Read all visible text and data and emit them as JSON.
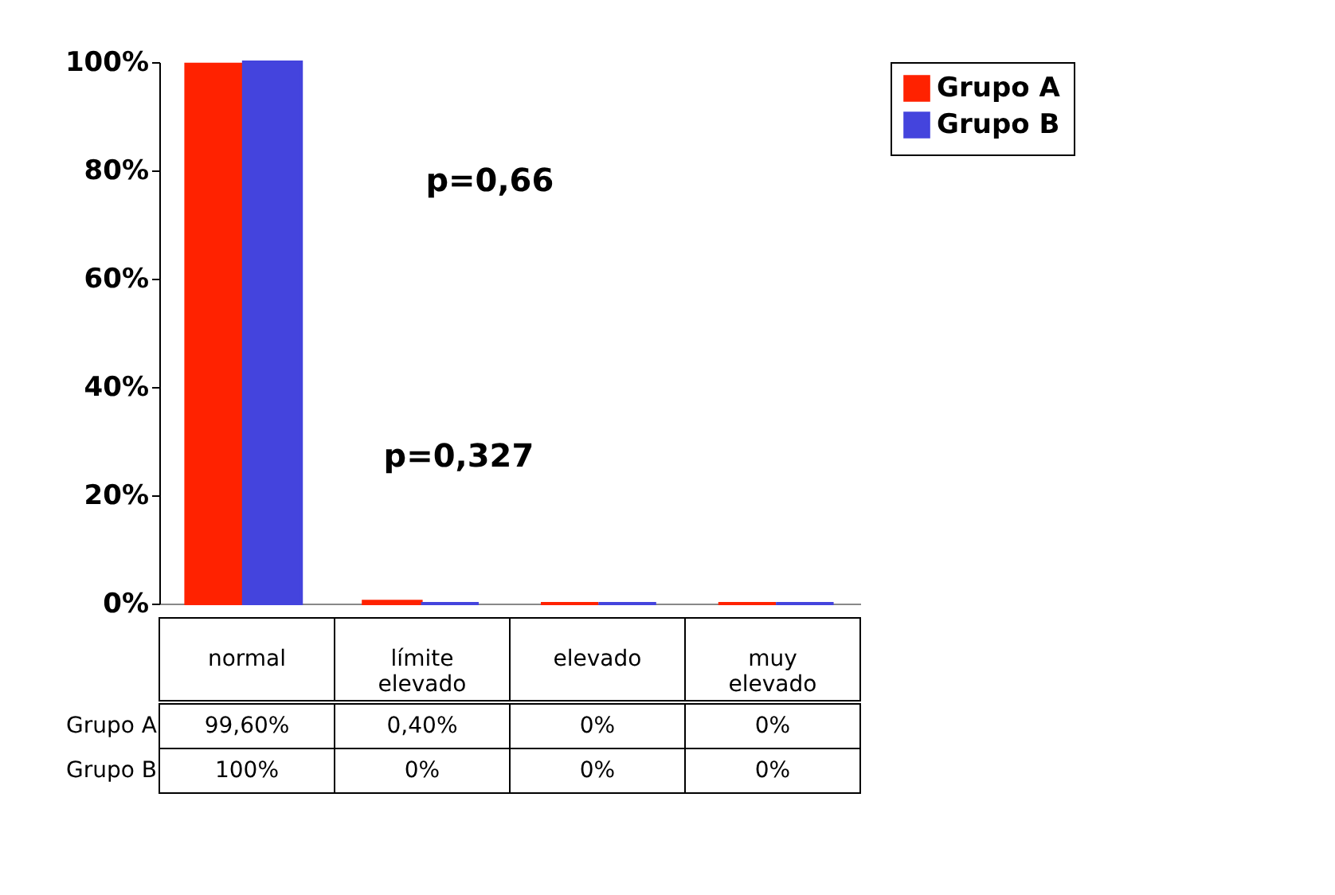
{
  "chart_data": {
    "type": "bar",
    "categories": [
      "normal",
      "límite elevado",
      "elevado",
      "muy elevado"
    ],
    "series": [
      {
        "name": "Grupo A",
        "color": "#ff2200",
        "values": [
          99.6,
          0.4,
          0,
          0
        ],
        "value_labels": [
          "99,60%",
          "0,40%",
          "0%",
          "0%"
        ]
      },
      {
        "name": "Grupo B",
        "color": "#4444dd",
        "values": [
          100,
          0,
          0,
          0
        ],
        "value_labels": [
          "100%",
          "0%",
          "0%",
          "0%"
        ]
      }
    ],
    "ylim": [
      0,
      100
    ],
    "yticks": [
      {
        "value": 0,
        "label": "0%"
      },
      {
        "value": 20,
        "label": "20%"
      },
      {
        "value": 40,
        "label": "40%"
      },
      {
        "value": 60,
        "label": "60%"
      },
      {
        "value": 80,
        "label": "80%"
      },
      {
        "value": 100,
        "label": "100%"
      }
    ],
    "annotations": [
      "p=0,66",
      "p=0,327"
    ],
    "legend": "right",
    "grid": false
  }
}
